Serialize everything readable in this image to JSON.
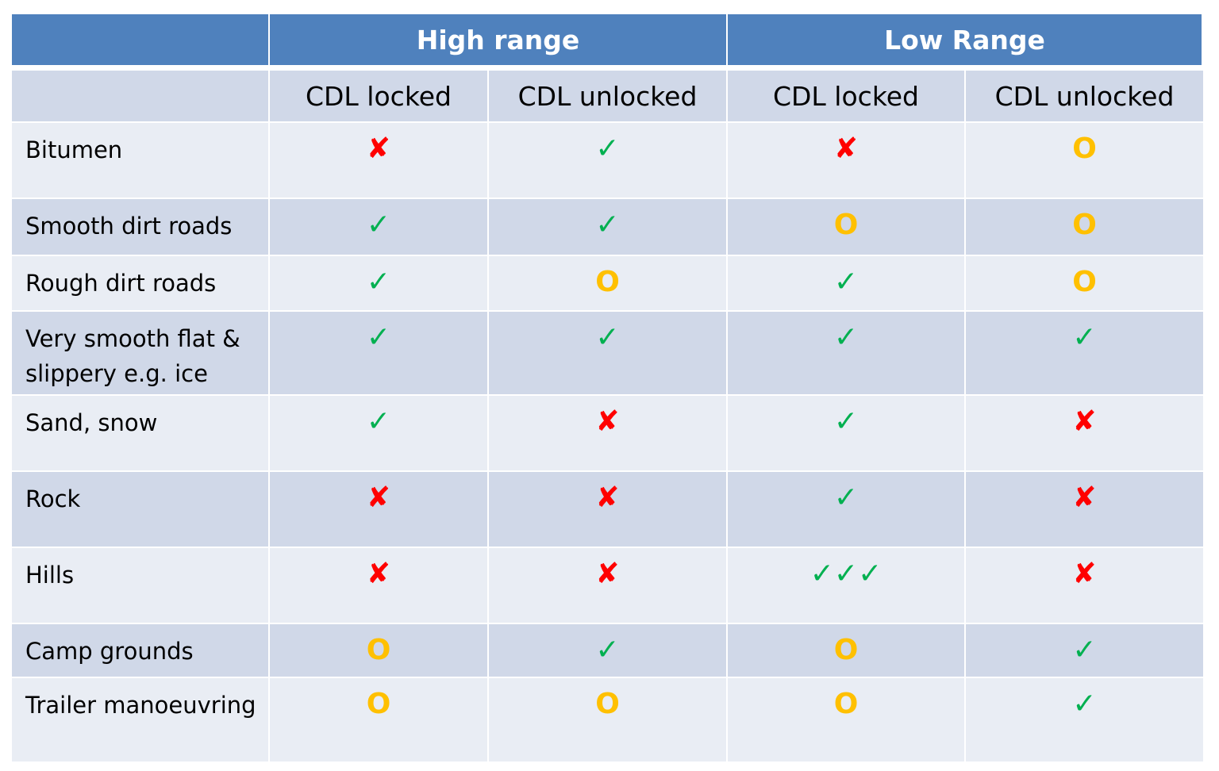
{
  "table": {
    "groups": [
      "High range",
      "Low Range"
    ],
    "columns": [
      "CDL locked",
      "CDL unlocked",
      "CDL locked",
      "CDL unlocked"
    ],
    "rows": [
      {
        "label": "Bitumen",
        "cells": [
          {
            "text": "✘",
            "color": "#ff0000"
          },
          {
            "text": "✓",
            "color": "#00b050"
          },
          {
            "text": "✘",
            "color": "#ff0000"
          },
          {
            "text": "O",
            "color": "#ffc000"
          }
        ]
      },
      {
        "label": "Smooth dirt roads",
        "cells": [
          {
            "text": "✓",
            "color": "#00b050"
          },
          {
            "text": "✓",
            "color": "#00b050"
          },
          {
            "text": "O",
            "color": "#ffc000"
          },
          {
            "text": "O",
            "color": "#ffc000"
          }
        ]
      },
      {
        "label": "Rough dirt roads",
        "cells": [
          {
            "text": "✓",
            "color": "#00b050"
          },
          {
            "text": "O",
            "color": "#ffc000"
          },
          {
            "text": "✓",
            "color": "#00b050"
          },
          {
            "text": "O",
            "color": "#ffc000"
          }
        ]
      },
      {
        "label": "Very smooth flat & slippery e.g. ice",
        "cells": [
          {
            "text": "✓",
            "color": "#00b050"
          },
          {
            "text": "✓",
            "color": "#00b050"
          },
          {
            "text": "✓",
            "color": "#00b050"
          },
          {
            "text": "✓",
            "color": "#00b050"
          }
        ]
      },
      {
        "label": "Sand, snow",
        "cells": [
          {
            "text": "✓",
            "color": "#00b050"
          },
          {
            "text": "✘",
            "color": "#ff0000"
          },
          {
            "text": "✓",
            "color": "#00b050"
          },
          {
            "text": "✘",
            "color": "#ff0000"
          }
        ]
      },
      {
        "label": "Rock",
        "cells": [
          {
            "text": "✘",
            "color": "#ff0000"
          },
          {
            "text": "✘",
            "color": "#ff0000"
          },
          {
            "text": "✓",
            "color": "#00b050"
          },
          {
            "text": "✘",
            "color": "#ff0000"
          }
        ]
      },
      {
        "label": "Hills",
        "cells": [
          {
            "text": "✘",
            "color": "#ff0000"
          },
          {
            "text": "✘",
            "color": "#ff0000"
          },
          {
            "text": "✓✓✓",
            "color": "#00b050"
          },
          {
            "text": "✘",
            "color": "#ff0000"
          }
        ]
      },
      {
        "label": "Camp grounds",
        "cells": [
          {
            "text": "O",
            "color": "#ffc000"
          },
          {
            "text": "✓",
            "color": "#00b050"
          },
          {
            "text": "O",
            "color": "#ffc000"
          },
          {
            "text": "✓",
            "color": "#00b050"
          }
        ]
      },
      {
        "label": "Trailer manoeuvring",
        "cells": [
          {
            "text": "O",
            "color": "#ffc000"
          },
          {
            "text": "O",
            "color": "#ffc000"
          },
          {
            "text": "O",
            "color": "#ffc000"
          },
          {
            "text": "✓",
            "color": "#00b050"
          }
        ]
      }
    ]
  }
}
